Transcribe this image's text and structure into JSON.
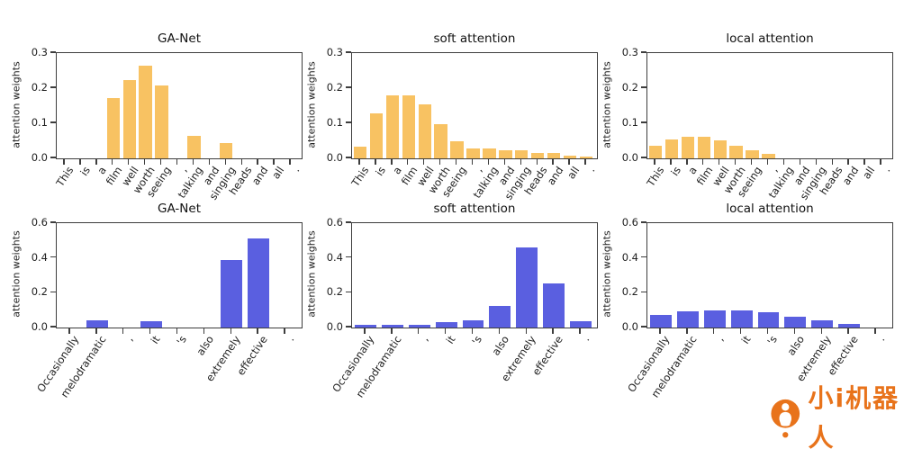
{
  "figure": {
    "background": "#ffffff",
    "axis_color": "#3d3d3d",
    "top_row_bar_color": "#f8c262",
    "bottom_row_bar_color": "#5a5fe0"
  },
  "chart_data": [
    {
      "type": "bar",
      "title": "GA-Net",
      "ylabel": "attention weights",
      "bar_color": "#f8c262",
      "ylim": [
        0,
        0.3
      ],
      "yticks": [
        "0.0",
        "0.1",
        "0.2",
        "0.3"
      ],
      "grid": false,
      "legend": "none",
      "categories": [
        "This",
        "is",
        "a",
        "film",
        "well",
        "worth",
        "seeing",
        ",",
        "talking",
        "and",
        "singing",
        "heads",
        "and",
        "all",
        "."
      ],
      "values": [
        0,
        0,
        0,
        0.177,
        0.228,
        0.272,
        0.213,
        0,
        0.065,
        0,
        0.045,
        0,
        0,
        0,
        0
      ]
    },
    {
      "type": "bar",
      "title": "soft attention",
      "ylabel": "attention weights",
      "bar_color": "#f8c262",
      "ylim": [
        0,
        0.3
      ],
      "yticks": [
        "0.0",
        "0.1",
        "0.2",
        "0.3"
      ],
      "grid": false,
      "legend": "none",
      "categories": [
        "This",
        "is",
        "a",
        "film",
        "well",
        "worth",
        "seeing",
        ",",
        "talking",
        "and",
        "singing",
        "heads",
        "and",
        "all",
        "."
      ],
      "values": [
        0.035,
        0.131,
        0.185,
        0.185,
        0.157,
        0.099,
        0.05,
        0.028,
        0.028,
        0.024,
        0.024,
        0.017,
        0.015,
        0.008,
        0.004
      ]
    },
    {
      "type": "bar",
      "title": "local attention",
      "ylabel": "attention weights",
      "bar_color": "#f8c262",
      "ylim": [
        0,
        0.3
      ],
      "yticks": [
        "0.0",
        "0.1",
        "0.2",
        "0.3"
      ],
      "grid": false,
      "legend": "none",
      "categories": [
        "This",
        "is",
        "a",
        "film",
        "well",
        "worth",
        "seeing",
        ",",
        "talking",
        "and",
        "singing",
        "heads",
        "and",
        "all",
        "."
      ],
      "values": [
        0.038,
        0.055,
        0.063,
        0.063,
        0.052,
        0.038,
        0.024,
        0.012,
        0,
        0,
        0,
        0,
        0,
        0,
        0
      ]
    },
    {
      "type": "bar",
      "title": "GA-Net",
      "ylabel": "attention weights",
      "bar_color": "#5a5fe0",
      "ylim": [
        0,
        0.6
      ],
      "yticks": [
        "0.0",
        "0.2",
        "0.4",
        "0.6"
      ],
      "grid": false,
      "legend": "none",
      "categories": [
        "Occasionally",
        "melodramatic",
        ",",
        "it",
        "'s",
        "also",
        "extremely",
        "effective",
        "."
      ],
      "values": [
        0,
        0.042,
        0,
        0.036,
        0,
        0,
        0.4,
        0.525,
        0
      ]
    },
    {
      "type": "bar",
      "title": "soft attention",
      "ylabel": "attention weights",
      "bar_color": "#5a5fe0",
      "ylim": [
        0,
        0.6
      ],
      "yticks": [
        "0.0",
        "0.2",
        "0.4",
        "0.6"
      ],
      "grid": false,
      "legend": "none",
      "categories": [
        "Occasionally",
        "melodramatic",
        ",",
        "it",
        "'s",
        "also",
        "extremely",
        "effective",
        "."
      ],
      "values": [
        0.015,
        0.018,
        0.015,
        0.03,
        0.042,
        0.125,
        0.47,
        0.26,
        0.035
      ]
    },
    {
      "type": "bar",
      "title": "local attention",
      "ylabel": "attention weights",
      "bar_color": "#5a5fe0",
      "ylim": [
        0,
        0.6
      ],
      "yticks": [
        "0.0",
        "0.2",
        "0.4",
        "0.6"
      ],
      "grid": false,
      "legend": "none",
      "categories": [
        "Occasionally",
        "melodramatic",
        ",",
        "it",
        "'s",
        "also",
        "extremely",
        "effective",
        "."
      ],
      "values": [
        0.075,
        0.095,
        0.103,
        0.103,
        0.09,
        0.065,
        0.04,
        0.022,
        0
      ]
    }
  ],
  "logo": {
    "text": "小i机器人",
    "color": "#e8731b",
    "icon": "xiaoi-robot-icon"
  }
}
